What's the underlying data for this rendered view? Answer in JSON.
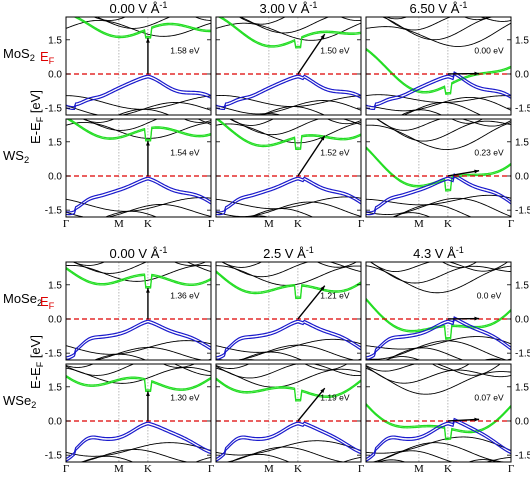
{
  "chart_data": {
    "type": "line",
    "y_axis_label": "E-E",
    "y_axis_label_sub": "F",
    "y_axis_unit": "[eV]",
    "fermi_label": "E",
    "fermi_label_sub": "F",
    "kpath": [
      "Γ",
      "M",
      "K",
      "Γ"
    ],
    "ylim": [
      -1.8,
      2.5
    ],
    "yticks": [
      "-1.5",
      "0.0",
      "1.5"
    ],
    "colors": {
      "valence": "#1a1acc",
      "conduction": "#22dd22",
      "other": "#000000",
      "fermi": "#dd0000",
      "arrow": "#000000"
    },
    "groups": [
      {
        "name": "sulfides",
        "fields": [
          {
            "label": "0.00 V Å",
            "sup": "-1"
          },
          {
            "label": "3.00 V Å",
            "sup": "-1"
          },
          {
            "label": "6.50 V Å",
            "sup": "-1"
          }
        ],
        "rows": [
          {
            "material": "MoS",
            "sub": "2",
            "gaps": [
              "1.58 eV",
              "1.50 eV",
              "0.00 eV"
            ]
          },
          {
            "material": "WS",
            "sub": "2",
            "gaps": [
              "1.54 eV",
              "1.52 eV",
              "0.23 eV"
            ]
          }
        ]
      },
      {
        "name": "selenides",
        "fields": [
          {
            "label": "0.00 V Å",
            "sup": "-1"
          },
          {
            "label": "2.5 V Å",
            "sup": "-1"
          },
          {
            "label": "4.3 V Å",
            "sup": "-1"
          }
        ],
        "rows": [
          {
            "material": "MoSe",
            "sub": "2",
            "gaps": [
              "1.36 eV",
              "1.21 eV",
              "0.0 eV"
            ]
          },
          {
            "material": "WSe",
            "sub": "2",
            "gaps": [
              "1.30 eV",
              "1.19 eV",
              "0.07 eV"
            ]
          }
        ]
      }
    ]
  }
}
